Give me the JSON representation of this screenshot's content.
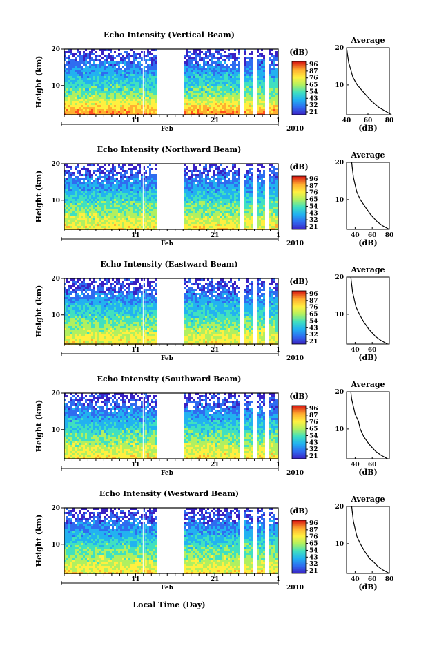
{
  "figure": {
    "x_axis_label": "Local Time (Day)",
    "month_label": "Feb",
    "year_label": "2010",
    "y_axis_label": "Height (km)",
    "colorbar_unit": "(dB)",
    "average_title": "Average",
    "average_unit": "(dB)"
  },
  "colors": {
    "scale": [
      "#3a22c4",
      "#2f6cf0",
      "#22b2f0",
      "#40e0c0",
      "#b0f060",
      "#fff040",
      "#ffb030",
      "#ff5020",
      "#d81010"
    ]
  },
  "chart_data": [
    {
      "type": "heatmap",
      "title": "Echo Intensity (Vertical Beam)",
      "x_ticks": [
        {
          "day": 11,
          "label": "11"
        },
        {
          "day": 21,
          "label": "21"
        },
        {
          "day": 1,
          "label": "1"
        }
      ],
      "xlim_days": [
        "2010-02-02",
        "2010-03-01"
      ],
      "ylim_km": [
        2,
        20
      ],
      "y_ticks": [
        10,
        20
      ],
      "colorbar_ticks": [
        "96",
        "87",
        "76",
        "65",
        "54",
        "43",
        "32",
        "21"
      ],
      "gap_days": [
        "2010-02-14",
        "2010-02-17"
      ],
      "average_profile": {
        "xlim": [
          40,
          80
        ],
        "x_ticks": [
          40,
          60,
          80
        ],
        "y_ticks": [
          10,
          20
        ],
        "height_km": [
          2,
          3,
          4,
          5,
          6,
          8,
          10,
          12,
          14,
          16,
          18,
          20
        ],
        "value_db": [
          82,
          76,
          70,
          66,
          62,
          56,
          50,
          46,
          44,
          42,
          41,
          40
        ]
      },
      "missing_columns": true
    },
    {
      "type": "heatmap",
      "title": "Echo Intensity (Northward Beam)",
      "x_ticks": [
        {
          "day": 11,
          "label": "11"
        },
        {
          "day": 21,
          "label": "21"
        },
        {
          "day": 1,
          "label": "1"
        }
      ],
      "xlim_days": [
        "2010-02-02",
        "2010-03-01"
      ],
      "ylim_km": [
        2,
        20
      ],
      "y_ticks": [
        10,
        20
      ],
      "colorbar_ticks": [
        "96",
        "87",
        "76",
        "65",
        "54",
        "43",
        "32",
        "21"
      ],
      "gap_days": [
        "2010-02-14",
        "2010-02-17"
      ],
      "average_profile": {
        "xlim": [
          30,
          80
        ],
        "x_ticks": [
          40,
          60,
          80
        ],
        "y_ticks": [
          10,
          20
        ],
        "height_km": [
          2,
          3,
          4,
          5,
          6,
          8,
          10,
          12,
          14,
          16,
          18,
          20
        ],
        "value_db": [
          80,
          72,
          66,
          62,
          58,
          52,
          46,
          42,
          40,
          38,
          37,
          36
        ]
      },
      "missing_columns": true
    },
    {
      "type": "heatmap",
      "title": "Echo Intensity (Eastward Beam)",
      "x_ticks": [
        {
          "day": 11,
          "label": "11"
        },
        {
          "day": 21,
          "label": "21"
        },
        {
          "day": 1,
          "label": "1"
        }
      ],
      "xlim_days": [
        "2010-02-02",
        "2010-03-01"
      ],
      "ylim_km": [
        2,
        20
      ],
      "y_ticks": [
        10,
        20
      ],
      "colorbar_ticks": [
        "96",
        "87",
        "76",
        "65",
        "54",
        "43",
        "32",
        "21"
      ],
      "gap_days": [
        "2010-02-14",
        "2010-02-17"
      ],
      "average_profile": {
        "xlim": [
          30,
          80
        ],
        "x_ticks": [
          40,
          60
        ],
        "y_ticks": [
          10,
          20
        ],
        "height_km": [
          2,
          3,
          4,
          5,
          6,
          8,
          10,
          12,
          14,
          16,
          18,
          20
        ],
        "value_db": [
          78,
          70,
          64,
          60,
          56,
          50,
          45,
          41,
          39,
          37,
          36,
          35
        ]
      },
      "missing_columns": true
    },
    {
      "type": "heatmap",
      "title": "Echo Intensity (Southward Beam)",
      "x_ticks": [
        {
          "day": 11,
          "label": "11"
        },
        {
          "day": 21,
          "label": "21"
        },
        {
          "day": 1,
          "label": "1"
        }
      ],
      "xlim_days": [
        "2010-02-02",
        "2010-03-01"
      ],
      "ylim_km": [
        2,
        20
      ],
      "y_ticks": [
        10,
        20
      ],
      "colorbar_ticks": [
        "96",
        "87",
        "76",
        "65",
        "54",
        "43",
        "32",
        "21"
      ],
      "gap_days": [
        "2010-02-14",
        "2010-02-17"
      ],
      "average_profile": {
        "xlim": [
          30,
          80
        ],
        "x_ticks": [
          40,
          60
        ],
        "y_ticks": [
          10,
          20
        ],
        "height_km": [
          2,
          3,
          4,
          5,
          6,
          8,
          10,
          12,
          14,
          16,
          18,
          20
        ],
        "value_db": [
          78,
          70,
          64,
          60,
          56,
          50,
          46,
          44,
          40,
          38,
          36,
          35
        ]
      },
      "missing_columns": true
    },
    {
      "type": "heatmap",
      "title": "Echo Intensity (Westward Beam)",
      "x_ticks": [
        {
          "day": 11,
          "label": "11"
        },
        {
          "day": 21,
          "label": "21"
        },
        {
          "day": 1,
          "label": "1"
        }
      ],
      "xlim_days": [
        "2010-02-02",
        "2010-03-01"
      ],
      "ylim_km": [
        2,
        20
      ],
      "y_ticks": [
        10,
        20
      ],
      "colorbar_ticks": [
        "96",
        "87",
        "76",
        "65",
        "54",
        "43",
        "32",
        "21"
      ],
      "gap_days": [
        "2010-02-14",
        "2010-02-17"
      ],
      "average_profile": {
        "xlim": [
          30,
          80
        ],
        "x_ticks": [
          40,
          60,
          80
        ],
        "y_ticks": [
          10,
          20
        ],
        "height_km": [
          2,
          3,
          4,
          5,
          6,
          8,
          10,
          12,
          14,
          16,
          18,
          20
        ],
        "value_db": [
          80,
          72,
          66,
          62,
          57,
          51,
          46,
          42,
          40,
          38,
          37,
          36
        ]
      },
      "missing_columns": true
    }
  ]
}
